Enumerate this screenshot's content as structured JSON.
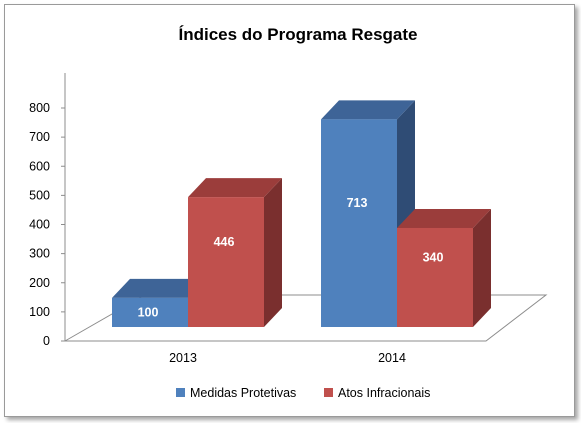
{
  "chart_data": {
    "type": "bar",
    "title": "Índices do Programa Resgate",
    "categories": [
      "2013",
      "2014"
    ],
    "series": [
      {
        "name": "Medidas Protetivas",
        "values": [
          100,
          713
        ],
        "color": "#4f81bd",
        "color_top": "#3e6497",
        "color_side": "#2f4c75"
      },
      {
        "name": "Atos Infracionais",
        "values": [
          446,
          340
        ],
        "color": "#c0504d",
        "color_top": "#9b3d3b",
        "color_side": "#7a2f2e"
      }
    ],
    "ylim": [
      0,
      800
    ],
    "yticks": [
      "0",
      "100",
      "200",
      "300",
      "400",
      "500",
      "600",
      "700",
      "800"
    ],
    "data_labels": true,
    "legend_position": "bottom",
    "style": "3d-clustered-column",
    "gridlines": false
  }
}
